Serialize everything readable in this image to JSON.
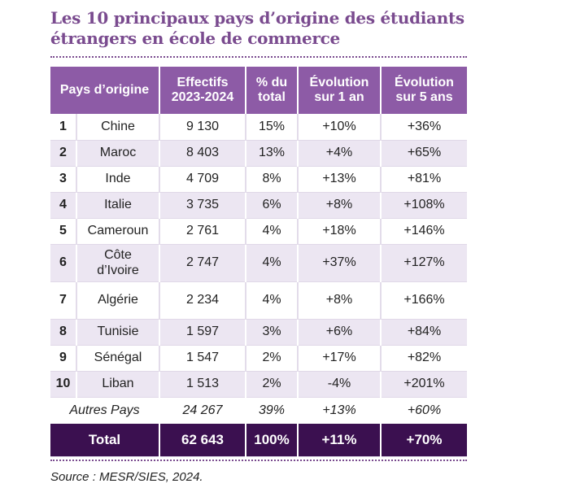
{
  "title_line1": "Les 10 principaux pays d’origine des étudiants",
  "title_line2": "étrangers en école de commerce",
  "headers": {
    "country": "Pays d’origine",
    "count_l1": "Effectifs",
    "count_l2": "2023-2024",
    "share_l1": "% du",
    "share_l2": "total",
    "evo1_l1": "Évolution",
    "evo1_l2": "sur 1 an",
    "evo5_l1": "Évolution",
    "evo5_l2": "sur 5 ans"
  },
  "rows": [
    {
      "rank": "1",
      "country": "Chine",
      "count": "9 130",
      "share": "15%",
      "evo1": "+10%",
      "evo5": "+36%"
    },
    {
      "rank": "2",
      "country": "Maroc",
      "count": "8 403",
      "share": "13%",
      "evo1": "+4%",
      "evo5": "+65%"
    },
    {
      "rank": "3",
      "country": "Inde",
      "count": "4 709",
      "share": "8%",
      "evo1": "+13%",
      "evo5": "+81%"
    },
    {
      "rank": "4",
      "country": "Italie",
      "count": "3 735",
      "share": "6%",
      "evo1": "+8%",
      "evo5": "+108%"
    },
    {
      "rank": "5",
      "country": "Cameroun",
      "count": "2 761",
      "share": "4%",
      "evo1": "+18%",
      "evo5": "+146%"
    },
    {
      "rank": "6",
      "country_l1": "Côte",
      "country_l2": "d’Ivoire",
      "count": "2 747",
      "share": "4%",
      "evo1": "+37%",
      "evo5": "+127%"
    },
    {
      "rank": "7",
      "country": "Algérie",
      "count": "2 234",
      "share": "4%",
      "evo1": "+8%",
      "evo5": "+166%"
    },
    {
      "rank": "8",
      "country": "Tunisie",
      "count": "1 597",
      "share": "3%",
      "evo1": "+6%",
      "evo5": "+84%"
    },
    {
      "rank": "9",
      "country": "Sénégal",
      "count": "1 547",
      "share": "2%",
      "evo1": "+17%",
      "evo5": "+82%"
    },
    {
      "rank": "10",
      "country": "Liban",
      "count": "1 513",
      "share": "2%",
      "evo1": "-4%",
      "evo5": "+201%"
    }
  ],
  "other": {
    "label": "Autres Pays",
    "count": "24 267",
    "share": "39%",
    "evo1": "+13%",
    "evo5": "+60%"
  },
  "total": {
    "label": "Total",
    "count": "62 643",
    "share": "100%",
    "evo1": "+11%",
    "evo5": "+70%"
  },
  "source": "Source : MESR/SIES, 2024.",
  "colors": {
    "header_purple": "#8d5ba6",
    "title_purple": "#7a4b8f",
    "total_dark": "#3b1050",
    "stripe": "#ece6f2"
  }
}
